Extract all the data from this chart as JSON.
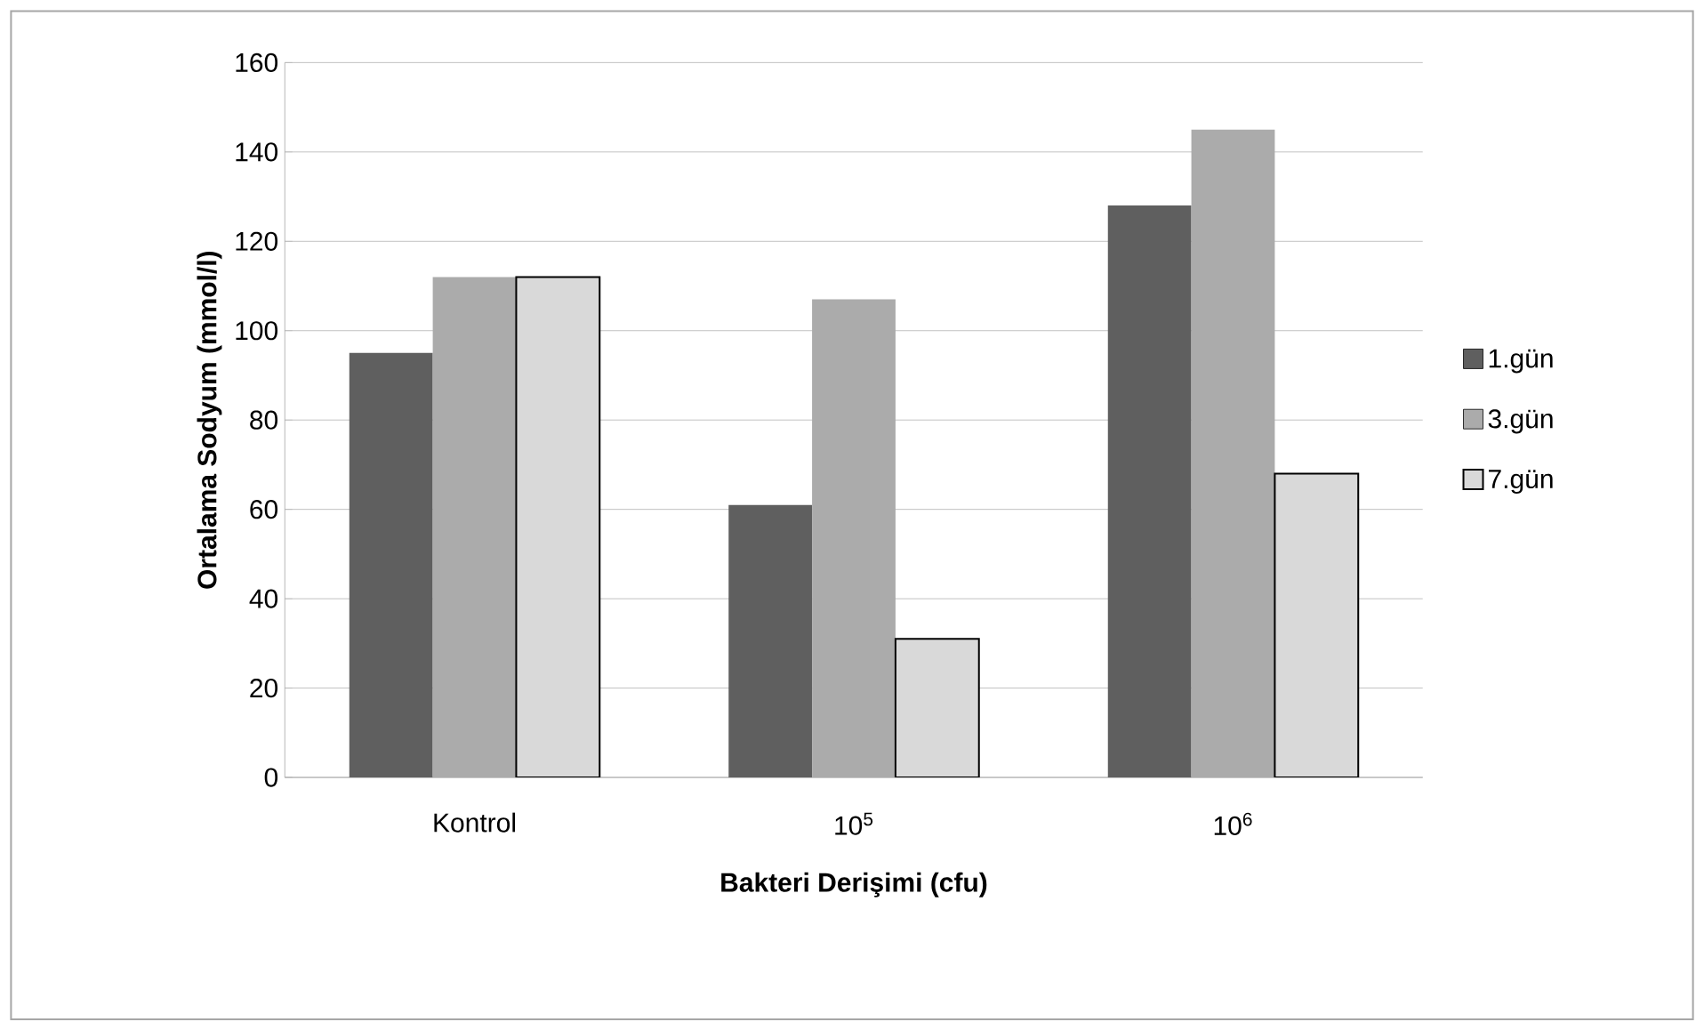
{
  "chart_data": {
    "type": "bar",
    "xlabel": "Bakteri Derişimi (cfu)",
    "ylabel": "Ortalama Sodyum  (mmol/l)",
    "categories": [
      "Kontrol",
      "10$^{5}$",
      "10$^{6}$"
    ],
    "series": [
      {
        "name": "1.gün",
        "color": "#5f5f5f",
        "values": [
          95,
          61,
          128
        ]
      },
      {
        "name": "3.gün",
        "color": "#ababab",
        "values": [
          112,
          107,
          145
        ]
      },
      {
        "name": "7.gün",
        "color": "#d9d9d9",
        "values": [
          112,
          31,
          68
        ]
      }
    ],
    "ylim": [
      0,
      160
    ],
    "yticks": [
      0,
      20,
      40,
      60,
      80,
      100,
      120,
      140,
      160
    ],
    "grid": "y",
    "legend": "right"
  }
}
